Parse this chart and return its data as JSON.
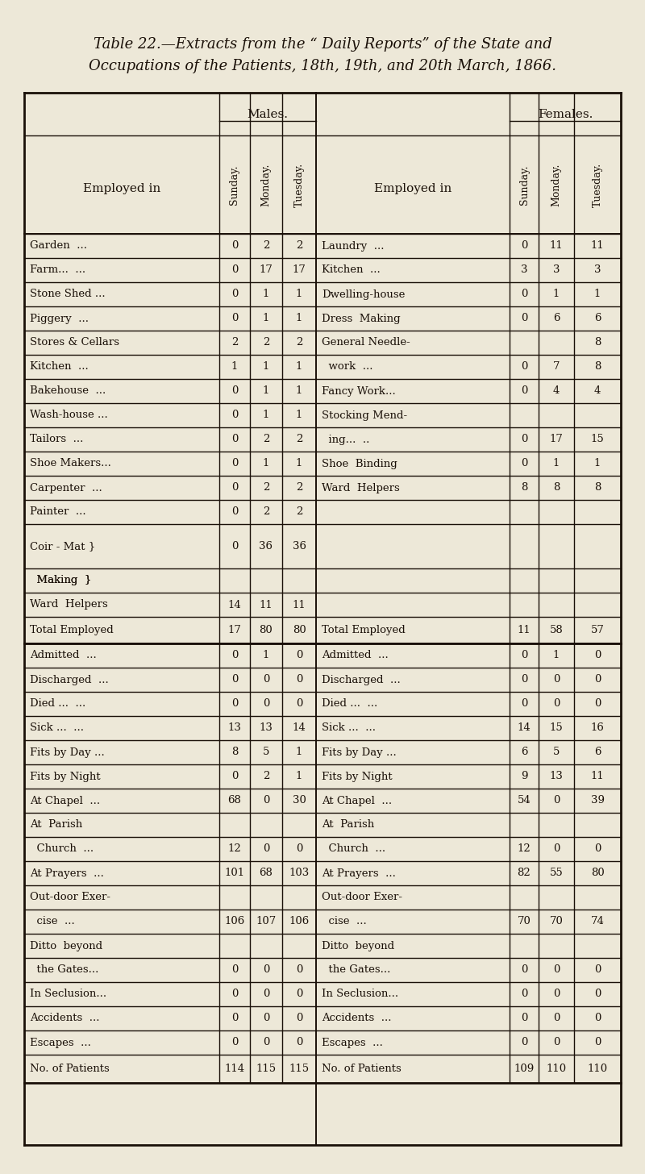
{
  "title_line1": "Table 22.—Extracts from the “ Daily Reports” of the State and",
  "title_line2": "Occupations of the Patients, 18th, 19th, and 20th March, 1866.",
  "bg_color": "#ede8d8",
  "text_color": "#1a1008",
  "males_header": "Males.",
  "females_header": "Females.",
  "col_headers": [
    "Sunday.",
    "Monday.",
    "Tuesday."
  ],
  "employed_label": "Employed in",
  "males_rows": [
    [
      "Garden  ...",
      "0",
      "2",
      "2"
    ],
    [
      "Farm...  ...",
      "0",
      "17",
      "17"
    ],
    [
      "Stone Shed ...",
      "0",
      "1",
      "1"
    ],
    [
      "Piggery  ...",
      "0",
      "1",
      "1"
    ],
    [
      "Stores & Cellars",
      "2",
      "2",
      "2"
    ],
    [
      "Kitchen  ...",
      "1",
      "1",
      "1"
    ],
    [
      "Bakehouse  ...",
      "0",
      "1",
      "1"
    ],
    [
      "Wash-house ...",
      "0",
      "1",
      "1"
    ],
    [
      "Tailors  ...",
      "0",
      "2",
      "2"
    ],
    [
      "Shoe Makers...",
      "0",
      "1",
      "1"
    ],
    [
      "Carpenter  ...",
      "0",
      "2",
      "2"
    ],
    [
      "Painter  ...",
      "0",
      "2",
      "2"
    ],
    [
      "Coir - Mat }",
      "0",
      "36",
      "36"
    ],
    [
      "  Making  }",
      "",
      "",
      ""
    ],
    [
      "Ward  Helpers",
      "14",
      "11",
      "11"
    ]
  ],
  "males_total": [
    "Total Employed",
    "17",
    "80",
    "80"
  ],
  "females_rows": [
    [
      "Laundry  ...",
      "0",
      "11",
      "11"
    ],
    [
      "Kitchen  ...",
      "3",
      "3",
      "3"
    ],
    [
      "Dwelling-house",
      "0",
      "1",
      "1"
    ],
    [
      "Dress  Making",
      "0",
      "6",
      "6"
    ],
    [
      "General Needle-",
      "",
      "",
      "8"
    ],
    [
      "  work  ...",
      "0",
      "7",
      "8"
    ],
    [
      "Fancy Work...",
      "0",
      "4",
      "4"
    ],
    [
      "Stocking Mend-",
      "",
      "",
      ""
    ],
    [
      "  ing...  ..",
      "0",
      "17",
      "15"
    ],
    [
      "Shoe  Binding",
      "0",
      "1",
      "1"
    ],
    [
      "Ward  Helpers",
      "8",
      "8",
      "8"
    ],
    [
      "",
      "",
      "",
      ""
    ],
    [
      "",
      "",
      "",
      ""
    ],
    [
      "",
      "",
      "",
      ""
    ],
    [
      "",
      "",
      "",
      ""
    ]
  ],
  "females_total": [
    "Total Employed",
    "11",
    "58",
    "57"
  ],
  "stats_rows_males": [
    [
      "Admitted  ...",
      "0",
      "1",
      "0"
    ],
    [
      "Discharged  ...",
      "0",
      "0",
      "0"
    ],
    [
      "Died ...  ...",
      "0",
      "0",
      "0"
    ],
    [
      "Sick ...  ...",
      "13",
      "13",
      "14"
    ],
    [
      "Fits by Day ...",
      "8",
      "5",
      "1"
    ],
    [
      "Fits by Night",
      "0",
      "2",
      "1"
    ],
    [
      "At Chapel  ...",
      "68",
      "0",
      "30"
    ],
    [
      "At  Parish",
      "",
      "",
      ""
    ],
    [
      "  Church  ...",
      "12",
      "0",
      "0"
    ],
    [
      "At Prayers  ...",
      "101",
      "68",
      "103"
    ],
    [
      "Out-door Exer-",
      "",
      "",
      ""
    ],
    [
      "  cise  ...",
      "106",
      "107",
      "106"
    ],
    [
      "Ditto  beyond",
      "",
      "",
      ""
    ],
    [
      "  the Gates...",
      "0",
      "0",
      "0"
    ],
    [
      "In Seclusion...",
      "0",
      "0",
      "0"
    ],
    [
      "Accidents  ...",
      "0",
      "0",
      "0"
    ],
    [
      "Escapes  ...",
      "0",
      "0",
      "0"
    ]
  ],
  "stats_rows_females": [
    [
      "Admitted  ...",
      "0",
      "1",
      "0"
    ],
    [
      "Discharged  ...",
      "0",
      "0",
      "0"
    ],
    [
      "Died ...  ...",
      "0",
      "0",
      "0"
    ],
    [
      "Sick ...  ...",
      "14",
      "15",
      "16"
    ],
    [
      "Fits by Day ...",
      "6",
      "5",
      "6"
    ],
    [
      "Fits by Night",
      "9",
      "13",
      "11"
    ],
    [
      "At Chapel  ...",
      "54",
      "0",
      "39"
    ],
    [
      "At  Parish",
      "",
      "",
      ""
    ],
    [
      "  Church  ...",
      "12",
      "0",
      "0"
    ],
    [
      "At Prayers  ...",
      "82",
      "55",
      "80"
    ],
    [
      "Out-door Exer-",
      "",
      "",
      ""
    ],
    [
      "  cise  ...",
      "70",
      "70",
      "74"
    ],
    [
      "Ditto  beyond",
      "",
      "",
      ""
    ],
    [
      "  the Gates...",
      "0",
      "0",
      "0"
    ],
    [
      "In Seclusion...",
      "0",
      "0",
      "0"
    ],
    [
      "Accidents  ...",
      "0",
      "0",
      "0"
    ],
    [
      "Escapes  ...",
      "0",
      "0",
      "0"
    ]
  ],
  "patients_males": [
    "No. of Patients",
    "114",
    "115",
    "115"
  ],
  "patients_females": [
    "No. of Patients",
    "109",
    "110",
    "110"
  ]
}
